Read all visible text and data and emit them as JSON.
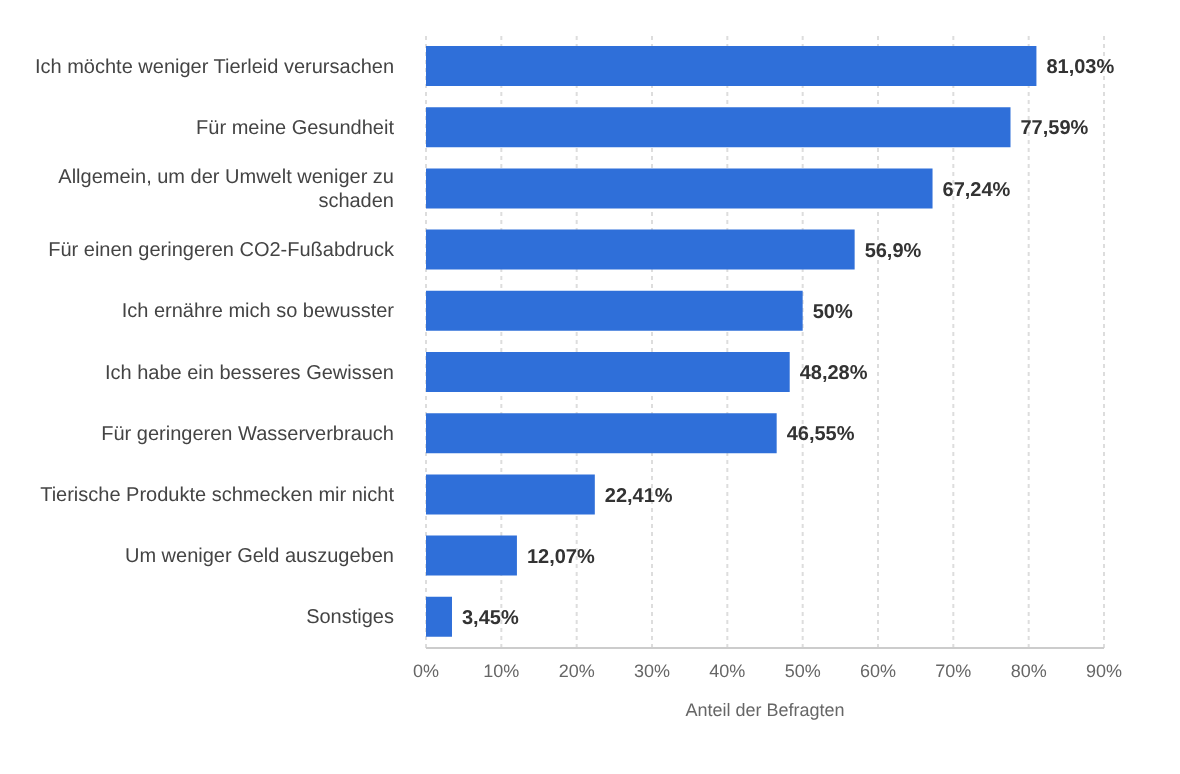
{
  "chart_data": {
    "type": "bar",
    "orientation": "horizontal",
    "xlabel": "Anteil der Befragten",
    "categories": [
      "Ich möchte weniger Tierleid verursachen",
      "Für meine Gesundheit",
      "Allgemein, um der Umwelt weniger zu schaden",
      "Für einen geringeren CO2-Fußabdruck",
      "Ich ernähre mich so bewusster",
      "Ich habe ein besseres Gewissen",
      "Für geringeren Wasserverbrauch",
      "Tierische Produkte schmecken mir nicht",
      "Um weniger Geld auszugeben",
      "Sonstiges"
    ],
    "values": [
      81.03,
      77.59,
      67.24,
      56.9,
      50,
      48.28,
      46.55,
      22.41,
      12.07,
      3.45
    ],
    "value_labels": [
      "81,03%",
      "77,59%",
      "67,24%",
      "56,9%",
      "50%",
      "48,28%",
      "46,55%",
      "22,41%",
      "12,07%",
      "3,45%"
    ],
    "color": "#2f6fd9",
    "xlim": [
      0,
      90
    ],
    "xticks": [
      {
        "value": 0,
        "label": "0%"
      },
      {
        "value": 10,
        "label": "10%"
      },
      {
        "value": 20,
        "label": "20%"
      },
      {
        "value": 30,
        "label": "30%"
      },
      {
        "value": 40,
        "label": "40%"
      },
      {
        "value": 50,
        "label": "50%"
      },
      {
        "value": 60,
        "label": "60%"
      },
      {
        "value": 70,
        "label": "70%"
      },
      {
        "value": 80,
        "label": "80%"
      },
      {
        "value": 90,
        "label": "90%"
      }
    ],
    "grid": "x",
    "legend": false
  }
}
